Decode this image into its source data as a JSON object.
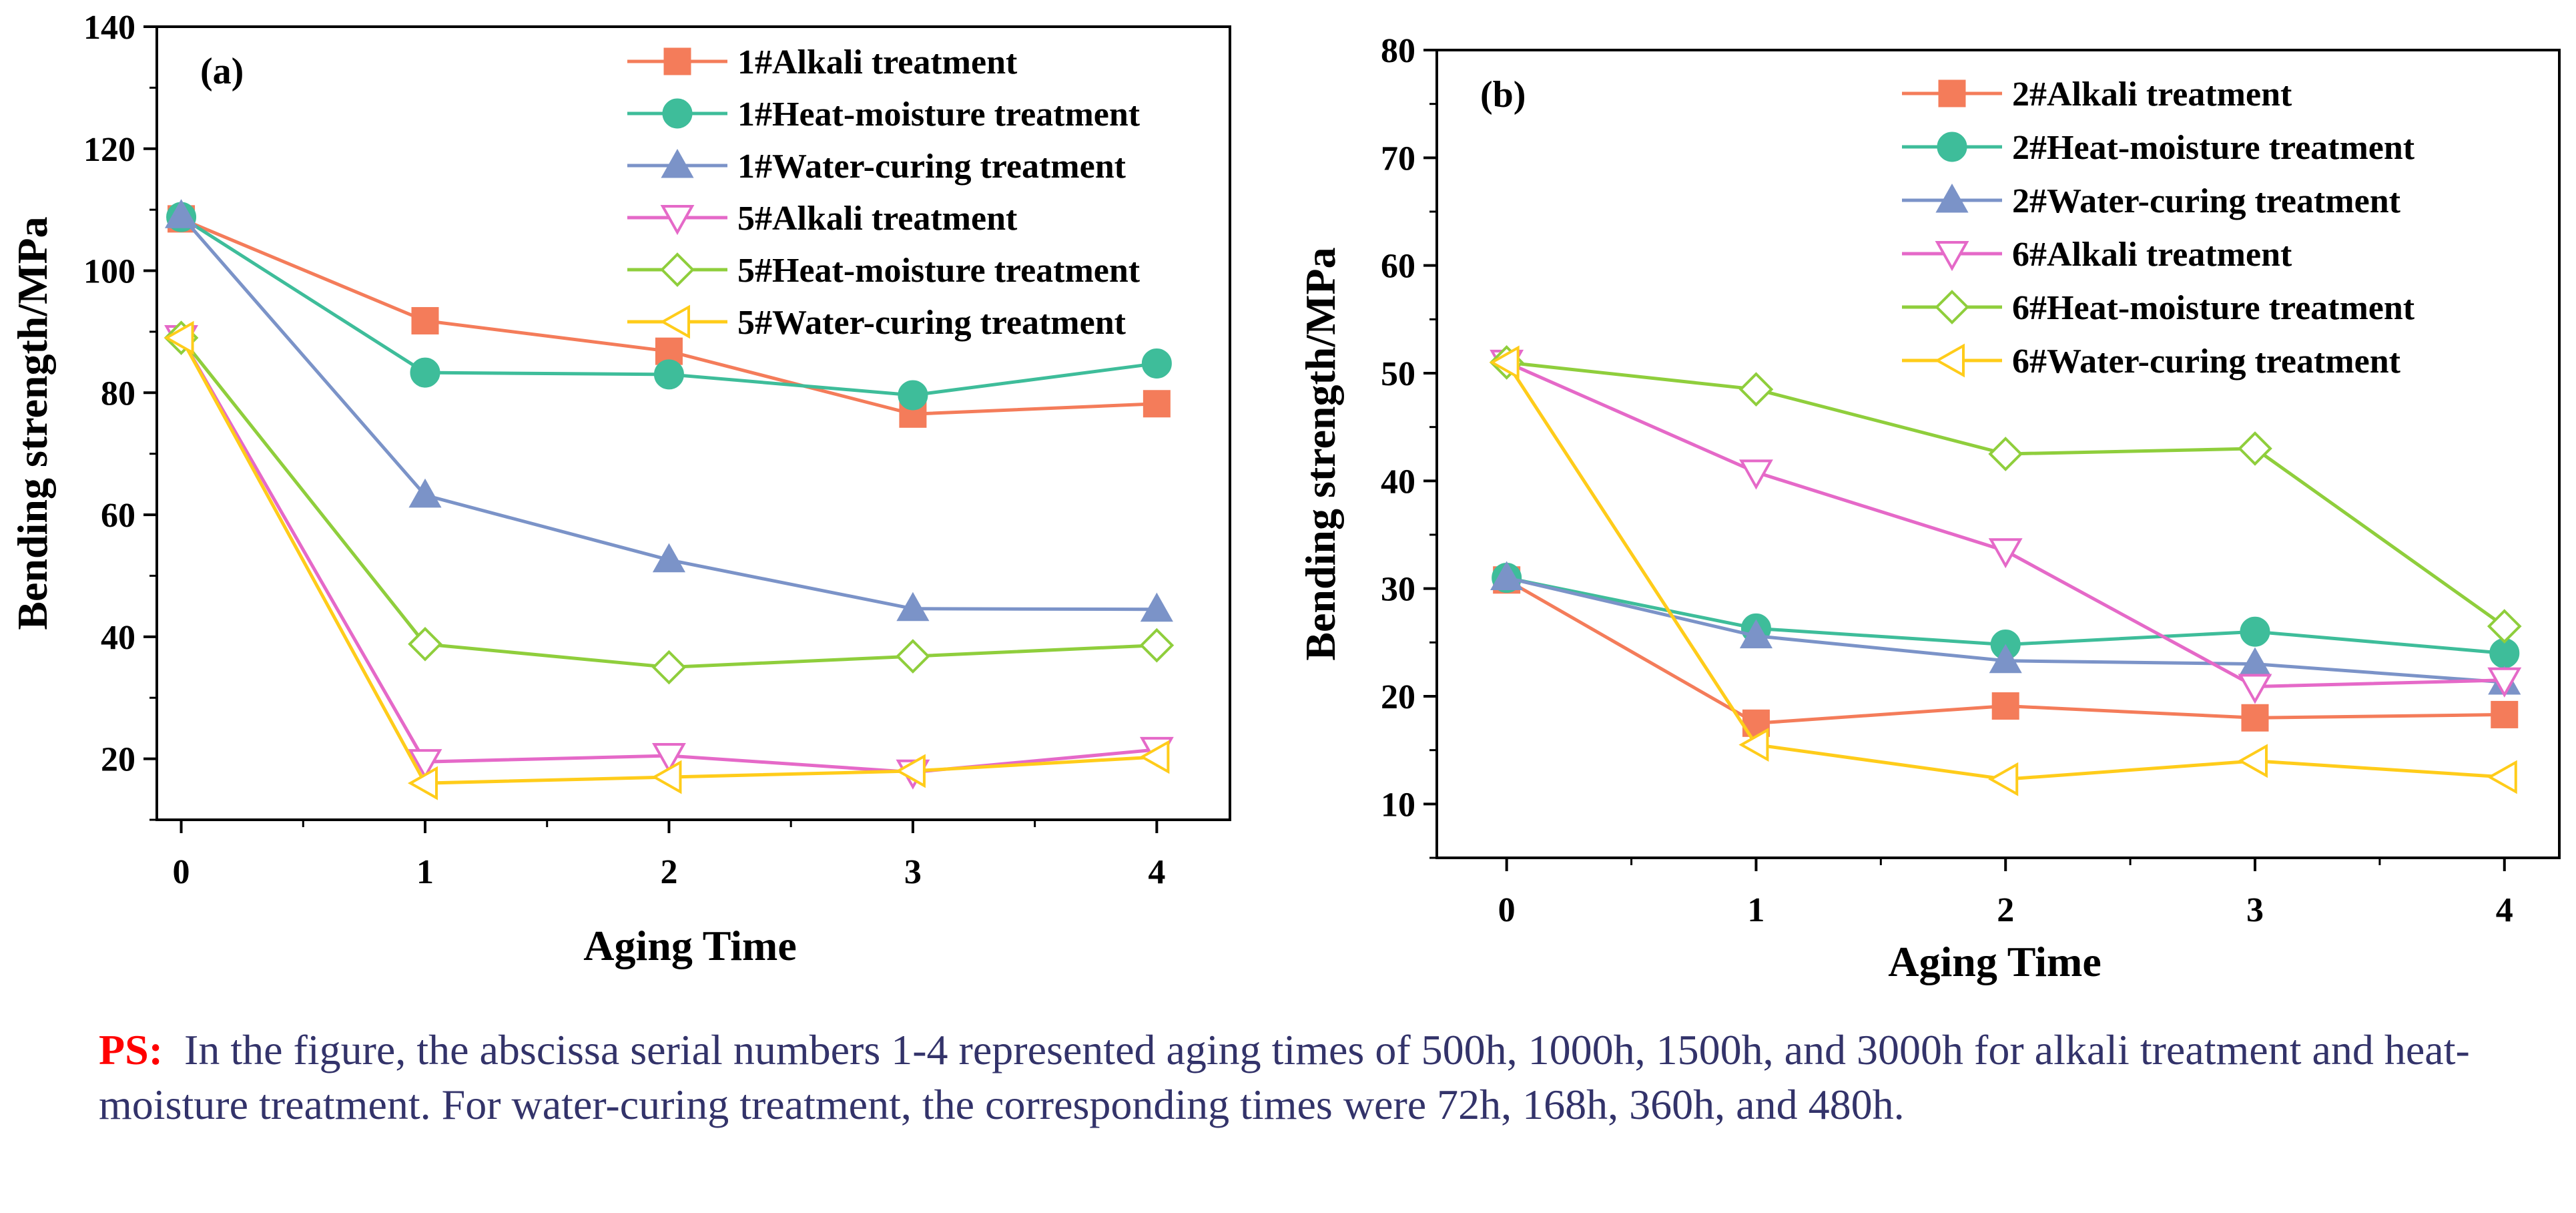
{
  "chart_data": [
    {
      "type": "line",
      "panel_label": "(a)",
      "xlabel": "Aging Time",
      "ylabel": "Bending strength/MPa",
      "x": [
        0,
        1,
        2,
        3,
        4
      ],
      "xlim": [
        -0.1,
        4.3
      ],
      "ylim": [
        10,
        140
      ],
      "x_ticks": [
        "0",
        "1",
        "2",
        "3",
        "4"
      ],
      "y_ticks": [
        "20",
        "40",
        "60",
        "80",
        "100",
        "120",
        "140"
      ],
      "legend_position": "top-right",
      "series": [
        {
          "name": "1#Alkali treatment",
          "values": [
            108.5,
            91.8,
            86.8,
            76.5,
            78.2
          ],
          "color": "#f47c5a",
          "marker": "square"
        },
        {
          "name": "1#Heat-moisture treatment",
          "values": [
            108.8,
            83.3,
            83.0,
            79.6,
            84.8
          ],
          "color": "#3ebd9a",
          "marker": "circle"
        },
        {
          "name": "1#Water-curing treatment",
          "values": [
            109.0,
            63.2,
            52.6,
            44.6,
            44.5
          ],
          "color": "#7b93c8",
          "marker": "triangle-up"
        },
        {
          "name": "5#Alkali treatment",
          "values": [
            89.0,
            19.5,
            20.5,
            17.8,
            21.5
          ],
          "color": "#e569c8",
          "marker": "triangle-down"
        },
        {
          "name": "5#Heat-moisture treatment",
          "values": [
            89.0,
            38.8,
            35.0,
            36.8,
            38.6
          ],
          "color": "#8fce3c",
          "marker": "diamond"
        },
        {
          "name": "5#Water-curing treatment",
          "values": [
            89.0,
            16.0,
            17.0,
            18.0,
            20.3
          ],
          "color": "#ffcc1a",
          "marker": "triangle-left"
        }
      ]
    },
    {
      "type": "line",
      "panel_label": "(b)",
      "xlabel": "Aging Time",
      "ylabel": "Bending strength/MPa",
      "x": [
        0,
        1,
        2,
        3,
        4
      ],
      "xlim": [
        -0.28,
        4.22
      ],
      "ylim": [
        5,
        80
      ],
      "x_ticks": [
        "0",
        "1",
        "2",
        "3",
        "4"
      ],
      "y_ticks": [
        "10",
        "20",
        "30",
        "40",
        "50",
        "60",
        "70",
        "80"
      ],
      "legend_position": "top-right",
      "series": [
        {
          "name": "2#Alkali treatment",
          "values": [
            30.8,
            17.5,
            19.1,
            18.0,
            18.3
          ],
          "color": "#f47c5a",
          "marker": "square"
        },
        {
          "name": "2#Heat-moisture treatment",
          "values": [
            31.0,
            26.3,
            24.8,
            26.0,
            24.0
          ],
          "color": "#3ebd9a",
          "marker": "circle"
        },
        {
          "name": "2#Water-curing treatment",
          "values": [
            31.0,
            25.6,
            23.3,
            23.0,
            21.3
          ],
          "color": "#7b93c8",
          "marker": "triangle-up"
        },
        {
          "name": "6#Alkali treatment",
          "values": [
            51.0,
            40.8,
            33.5,
            20.9,
            21.5
          ],
          "color": "#e569c8",
          "marker": "triangle-down"
        },
        {
          "name": "6#Heat-moisture treatment",
          "values": [
            51.0,
            48.5,
            42.5,
            43.0,
            26.5
          ],
          "color": "#8fce3c",
          "marker": "diamond"
        },
        {
          "name": "6#Water-curing treatment",
          "values": [
            51.0,
            15.5,
            12.3,
            14.0,
            12.5
          ],
          "color": "#ffcc1a",
          "marker": "triangle-left"
        }
      ]
    }
  ],
  "caption": {
    "ps_label": "PS:",
    "text": "In the figure, the abscissa serial numbers 1-4 represented aging times of 500h, 1000h, 1500h, and 3000h for alkali treatment and heat-moisture treatment. For water-curing treatment, the corresponding times were 72h, 168h, 360h, and 480h."
  }
}
